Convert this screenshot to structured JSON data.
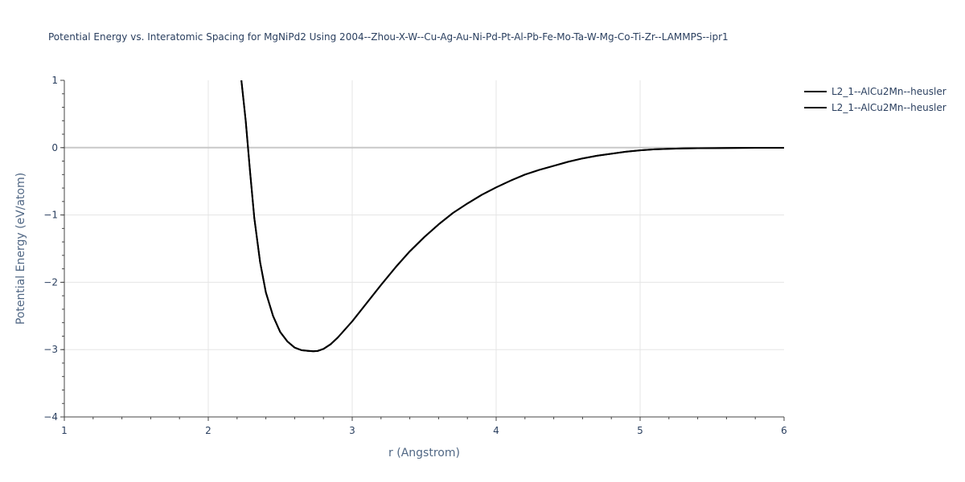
{
  "chart_data": {
    "type": "line",
    "title": "Potential Energy vs. Interatomic Spacing for MgNiPd2 Using 2004--Zhou-X-W--Cu-Ag-Au-Ni-Pd-Pt-Al-Pb-Fe-Mo-Ta-W-Mg-Co-Ti-Zr--LAMMPS--ipr1",
    "xlabel": "r (Angstrom)",
    "ylabel": "Potential Energy (eV/atom)",
    "xlim": [
      1,
      6
    ],
    "ylim": [
      -4,
      1
    ],
    "x_ticks": [
      "1",
      "2",
      "3",
      "4",
      "5",
      "6"
    ],
    "y_ticks": [
      "1",
      "0",
      "−1",
      "−2",
      "−3",
      "−4"
    ],
    "grid": true,
    "legend_position": "top-right",
    "colors": {
      "line": "#000000",
      "grid": "#e5e5e5",
      "zeroline": "#c8c8c8",
      "text": "#2a3f5f"
    },
    "series": [
      {
        "name": "L2_1--AlCu2Mn--heusler",
        "x": [
          2.23,
          2.26,
          2.29,
          2.32,
          2.36,
          2.4,
          2.45,
          2.5,
          2.55,
          2.6,
          2.65,
          2.7,
          2.73,
          2.76,
          2.8,
          2.85,
          2.9,
          3.0,
          3.1,
          3.2,
          3.3,
          3.4,
          3.5,
          3.6,
          3.7,
          3.8,
          3.9,
          4.0,
          4.1,
          4.2,
          4.3,
          4.4,
          4.5,
          4.6,
          4.7,
          4.8,
          4.9,
          5.0,
          5.1,
          5.2,
          5.3,
          5.4,
          5.6,
          5.8,
          6.0
        ],
        "y": [
          1.0,
          0.4,
          -0.35,
          -1.05,
          -1.7,
          -2.15,
          -2.5,
          -2.74,
          -2.88,
          -2.97,
          -3.01,
          -3.02,
          -3.025,
          -3.02,
          -2.99,
          -2.92,
          -2.82,
          -2.58,
          -2.31,
          -2.04,
          -1.78,
          -1.54,
          -1.33,
          -1.14,
          -0.97,
          -0.83,
          -0.7,
          -0.59,
          -0.49,
          -0.4,
          -0.33,
          -0.27,
          -0.21,
          -0.16,
          -0.12,
          -0.09,
          -0.06,
          -0.04,
          -0.025,
          -0.018,
          -0.012,
          -0.008,
          -0.005,
          -0.003,
          -0.002
        ]
      },
      {
        "name": "L2_1--AlCu2Mn--heusler",
        "x": [
          2.23,
          2.26,
          2.29,
          2.32,
          2.36,
          2.4,
          2.45,
          2.5,
          2.55,
          2.6,
          2.65,
          2.7,
          2.73,
          2.76,
          2.8,
          2.85,
          2.9,
          3.0,
          3.1,
          3.2,
          3.3,
          3.4,
          3.5,
          3.6,
          3.7,
          3.8,
          3.9,
          4.0,
          4.1,
          4.2,
          4.3,
          4.4,
          4.5,
          4.6,
          4.7,
          4.8,
          4.9,
          5.0,
          5.1,
          5.2,
          5.3,
          5.4,
          5.6,
          5.8,
          6.0
        ],
        "y": [
          1.0,
          0.4,
          -0.35,
          -1.05,
          -1.7,
          -2.15,
          -2.5,
          -2.74,
          -2.88,
          -2.97,
          -3.01,
          -3.02,
          -3.025,
          -3.02,
          -2.99,
          -2.92,
          -2.82,
          -2.58,
          -2.31,
          -2.04,
          -1.78,
          -1.54,
          -1.33,
          -1.14,
          -0.97,
          -0.83,
          -0.7,
          -0.59,
          -0.49,
          -0.4,
          -0.33,
          -0.27,
          -0.21,
          -0.16,
          -0.12,
          -0.09,
          -0.06,
          -0.04,
          -0.025,
          -0.018,
          -0.012,
          -0.008,
          -0.005,
          -0.003,
          -0.002
        ]
      }
    ]
  }
}
